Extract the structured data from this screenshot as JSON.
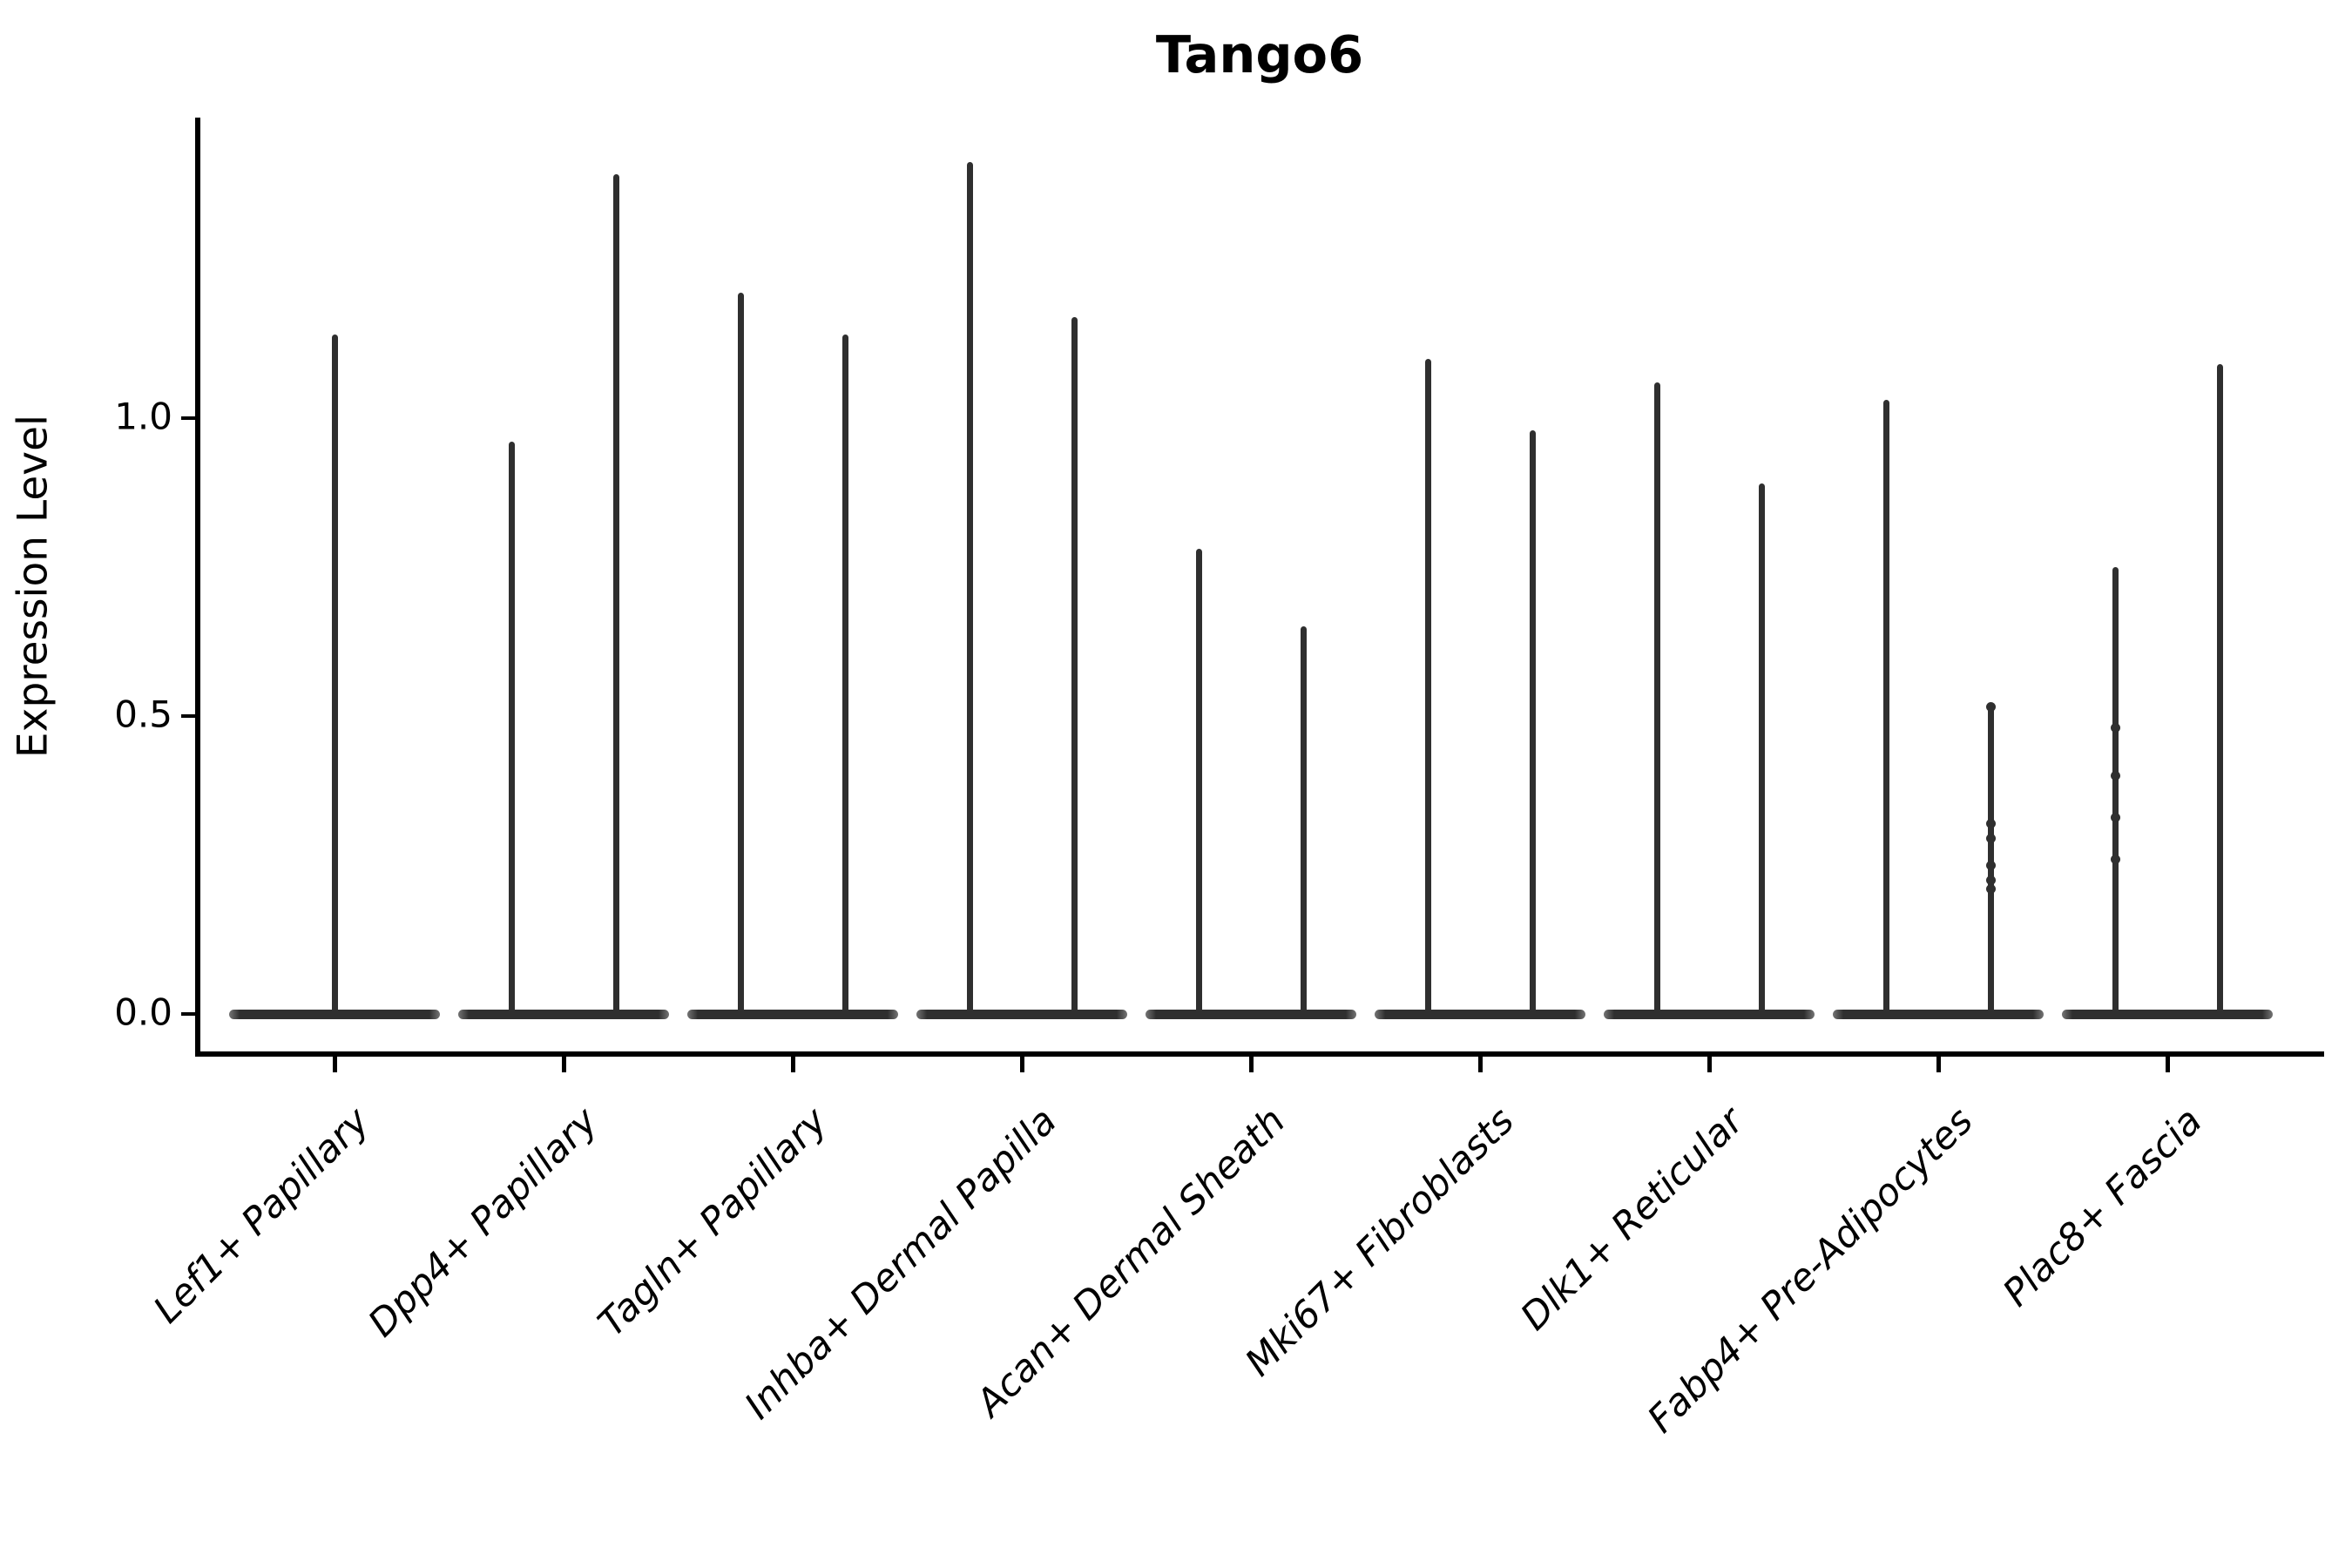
{
  "chart_data": {
    "type": "violin",
    "title": "Tango6",
    "ylabel": "Expression Level",
    "xlabel": "",
    "grid": false,
    "legend": false,
    "x_tick_rotation": 45,
    "ylim": [
      -0.07,
      1.51
    ],
    "yticks": [
      {
        "value": 0.0,
        "label": "0.0"
      },
      {
        "value": 0.5,
        "label": "0.5"
      },
      {
        "value": 1.0,
        "label": "1.0"
      }
    ],
    "categories": [
      "Lef1+ Papillary",
      "Dpp4+ Papillary",
      "Tagln+ Papillary",
      "Inhba+ Dermal Papilla",
      "Acan+ Dermal Sheath",
      "Mki67+ Fibroblasts",
      "Dlk1+ Reticular",
      "Fabp4+ Pre-Adipocytes",
      "Plac8+ Fascia"
    ],
    "violins": [
      {
        "category": "Lef1+ Papillary",
        "needles": [
          {
            "max": 1.14,
            "dots": []
          }
        ]
      },
      {
        "category": "Dpp4+ Papillary",
        "needles": [
          {
            "max": 0.96,
            "dots": []
          },
          {
            "max": 1.41,
            "dots": []
          }
        ]
      },
      {
        "category": "Tagln+ Papillary",
        "needles": [
          {
            "max": 1.21,
            "dots": []
          },
          {
            "max": 1.14,
            "dots": []
          }
        ]
      },
      {
        "category": "Inhba+ Dermal Papilla",
        "needles": [
          {
            "max": 1.43,
            "dots": []
          },
          {
            "max": 1.17,
            "dots": []
          }
        ]
      },
      {
        "category": "Acan+ Dermal Sheath",
        "needles": [
          {
            "max": 0.78,
            "dots": []
          },
          {
            "max": 0.65,
            "dots": []
          }
        ]
      },
      {
        "category": "Mki67+ Fibroblasts",
        "needles": [
          {
            "max": 1.1,
            "dots": []
          },
          {
            "max": 0.98,
            "dots": []
          }
        ]
      },
      {
        "category": "Dlk1+ Reticular",
        "needles": [
          {
            "max": 1.06,
            "dots": []
          },
          {
            "max": 0.89,
            "dots": []
          }
        ]
      },
      {
        "category": "Fabp4+ Pre-Adipocytes",
        "needles": [
          {
            "max": 1.03,
            "dots": []
          },
          {
            "max": 0.515,
            "dots": [
              0.515,
              0.32,
              0.295,
              0.25,
              0.225,
              0.21
            ]
          }
        ]
      },
      {
        "category": "Plac8+ Fascia",
        "needles": [
          {
            "max": 0.75,
            "dots": [
              0.48,
              0.4,
              0.33,
              0.26
            ]
          },
          {
            "max": 1.09,
            "dots": []
          }
        ]
      }
    ],
    "colors": {
      "violin": "#2f2f2f",
      "violin_tip": "#757575",
      "axis": "#000000",
      "text": "#000000",
      "background": "#ffffff"
    }
  }
}
